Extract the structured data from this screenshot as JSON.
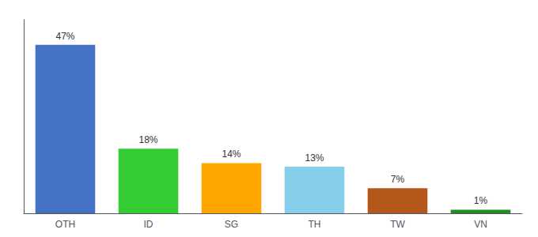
{
  "chart_data": {
    "type": "bar",
    "categories": [
      "OTH",
      "ID",
      "SG",
      "TH",
      "TW",
      "VN"
    ],
    "values": [
      47,
      18,
      14,
      13,
      7,
      1
    ],
    "value_labels": [
      "47%",
      "18%",
      "14%",
      "13%",
      "7%",
      "1%"
    ],
    "colors": [
      "#4472C4",
      "#33CC33",
      "#FFA500",
      "#87CEEB",
      "#B5561A",
      "#228B22"
    ],
    "ylim": [
      0,
      54
    ],
    "data_labels": true,
    "tick_labels": "x",
    "grid": false
  }
}
